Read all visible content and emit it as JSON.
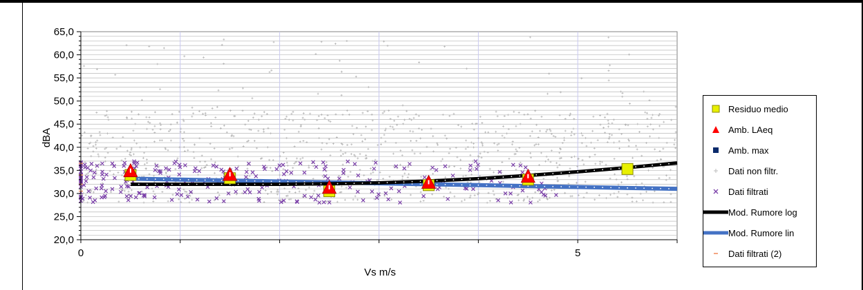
{
  "chart_data": {
    "type": "scatter",
    "ylabel": "dBA",
    "xlabel": "Vs m/s",
    "xlim": [
      0,
      6
    ],
    "ylim": [
      20,
      65
    ],
    "y_ticks": [
      "65,0",
      "60,0",
      "55,0",
      "50,0",
      "45,0",
      "40,0",
      "35,0",
      "30,0",
      "25,0",
      "20,0"
    ],
    "x_ticks": [
      "0",
      "5"
    ],
    "legend_position": "right",
    "legend": [
      {
        "label": "Residuo medio",
        "symbol": "square",
        "color": "#e8f000"
      },
      {
        "label": "Amb. LAeq",
        "symbol": "triangle",
        "color": "#ff0000"
      },
      {
        "label": "Amb. max",
        "symbol": "square-small",
        "color": "#0b2a6b"
      },
      {
        "label": "Dati non filtr.",
        "symbol": "plus",
        "color": "#bbbbbb"
      },
      {
        "label": "Dati filtrati",
        "symbol": "x",
        "color": "#7a3fa8"
      },
      {
        "label": "Mod. Rumore log",
        "symbol": "line",
        "color": "#000000"
      },
      {
        "label": "Mod. Rumore lin",
        "symbol": "line",
        "color": "#4472c4"
      },
      {
        "label": "Dati filtrati (2)",
        "symbol": "dash",
        "color": "#f4a582"
      }
    ],
    "series": [
      {
        "name": "Residuo medio",
        "points": [
          [
            0.5,
            34.0
          ],
          [
            1.5,
            33.3
          ],
          [
            2.5,
            30.5
          ],
          [
            3.5,
            31.8
          ],
          [
            4.5,
            33.0
          ],
          [
            5.5,
            35.3
          ]
        ]
      },
      {
        "name": "Amb. LAeq",
        "points": [
          [
            0.5,
            34.8
          ],
          [
            1.5,
            34.0
          ],
          [
            2.5,
            31.2
          ],
          [
            3.5,
            32.3
          ],
          [
            4.5,
            33.6
          ]
        ]
      },
      {
        "name": "Mod. Rumore log",
        "points": [
          [
            0.5,
            32.0
          ],
          [
            1.0,
            32.0
          ],
          [
            1.5,
            32.0
          ],
          [
            2.0,
            32.0
          ],
          [
            2.5,
            32.1
          ],
          [
            3.0,
            32.3
          ],
          [
            3.5,
            32.7
          ],
          [
            4.0,
            33.2
          ],
          [
            4.5,
            33.9
          ],
          [
            5.0,
            34.7
          ],
          [
            5.5,
            35.6
          ],
          [
            6.0,
            36.6
          ]
        ]
      },
      {
        "name": "Mod. Rumore lin",
        "points": [
          [
            0.5,
            33.2
          ],
          [
            1.0,
            33.0
          ],
          [
            1.5,
            32.8
          ],
          [
            2.0,
            32.6
          ],
          [
            2.5,
            32.4
          ],
          [
            3.0,
            32.2
          ],
          [
            3.5,
            32.0
          ],
          [
            4.0,
            31.8
          ],
          [
            4.5,
            31.6
          ],
          [
            5.0,
            31.4
          ],
          [
            5.5,
            31.2
          ],
          [
            6.0,
            31.0
          ]
        ]
      },
      {
        "name": "Dati filtrati (2)",
        "points": [
          [
            0.0,
            36.5
          ],
          [
            0.0,
            34.0
          ],
          [
            0.0,
            32.0
          ],
          [
            0.0,
            30.5
          ]
        ]
      }
    ]
  }
}
